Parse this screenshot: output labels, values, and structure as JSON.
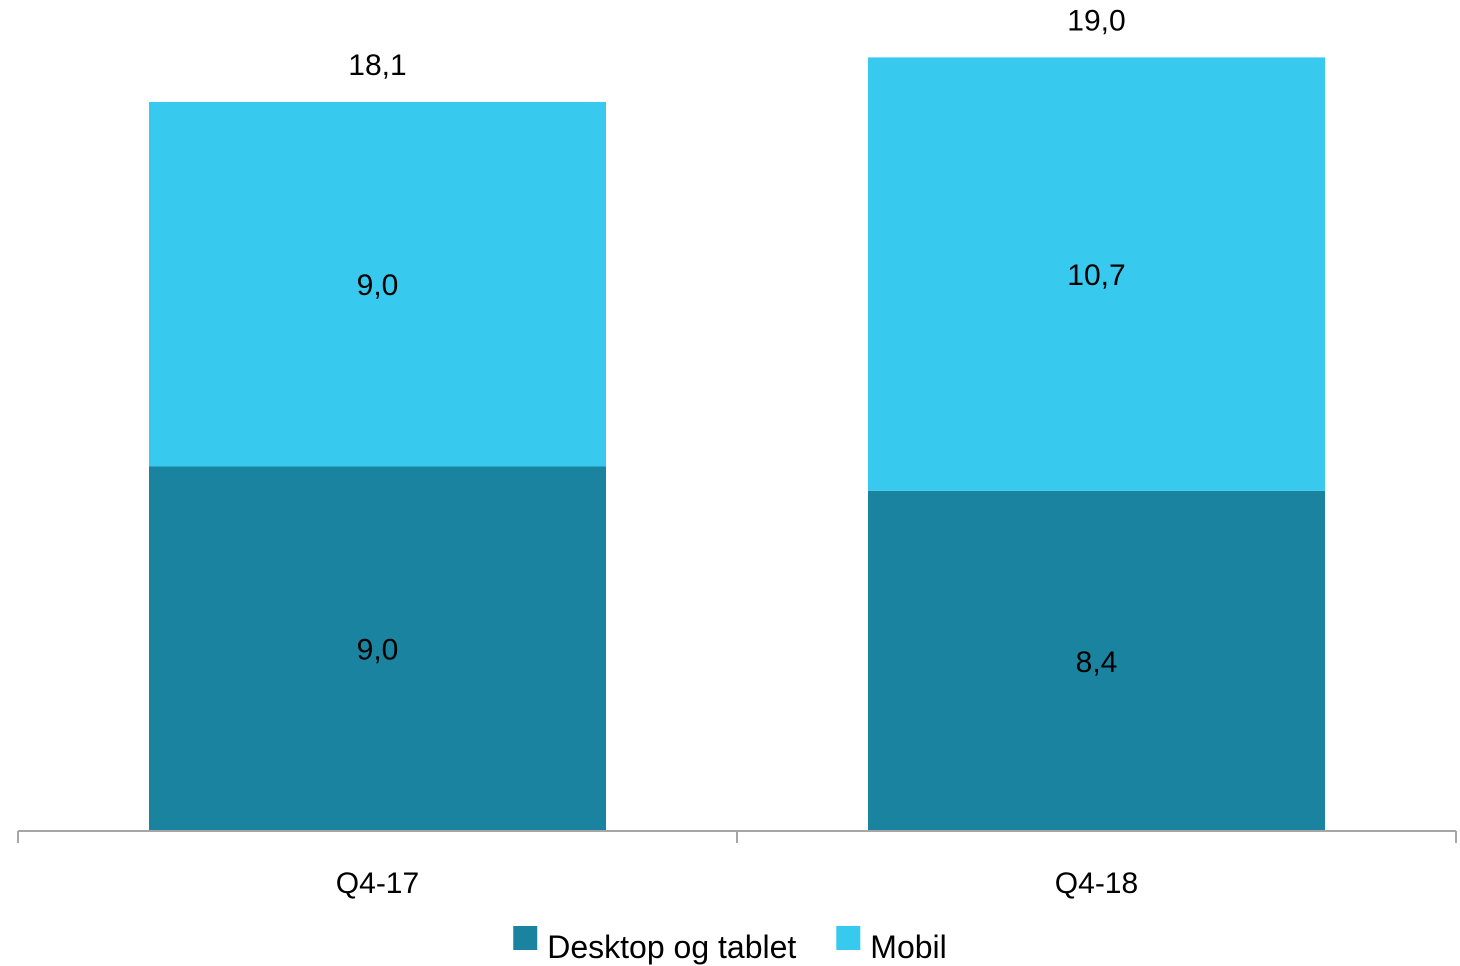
{
  "chart_data": {
    "type": "bar",
    "stacked": true,
    "categories": [
      "Q4-17",
      "Q4-18"
    ],
    "series": [
      {
        "name": "Desktop og tablet",
        "values": [
          9.0,
          8.4
        ],
        "labels": [
          "9,0",
          "8,4"
        ],
        "color": "#1a84a0"
      },
      {
        "name": "Mobil",
        "values": [
          9.0,
          10.7
        ],
        "labels": [
          "9,0",
          "10,7"
        ],
        "color": "#38c9ef"
      }
    ],
    "totals": [
      18.1,
      19.0
    ],
    "total_labels": [
      "18,1",
      "19,0"
    ],
    "ylim": [
      0,
      19.9
    ],
    "grid": false,
    "legend": "bottom-center",
    "axis_color": "#a6a6a6"
  }
}
